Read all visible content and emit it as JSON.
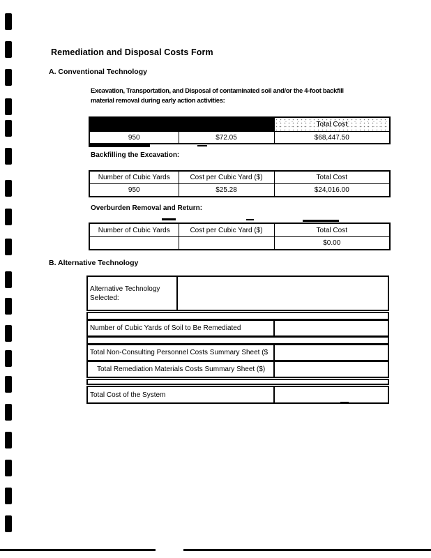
{
  "colors": {
    "ink": "#000000",
    "paper": "#ffffff"
  },
  "title": "Remediation and Disposal Costs Form",
  "section_a": {
    "heading": "A.  Conventional Technology",
    "excavation": {
      "description": "Excavation, Transportation, and Disposal of contaminated soil and/or the 4-foot backfill\nmaterial removal during early action activities:",
      "table": {
        "headers": [
          "",
          "",
          "Total Cost"
        ],
        "header_redacted": true,
        "row": [
          "950",
          "$72.05",
          "$68,447.50"
        ]
      }
    },
    "backfilling": {
      "heading": "Backfilling the Excavation:",
      "table": {
        "headers": [
          "Number of Cubic Yards",
          "Cost per Cubic Yard ($)",
          "Total Cost"
        ],
        "row": [
          "950",
          "$25.28",
          "$24,016.00"
        ]
      }
    },
    "overburden": {
      "heading": "Overburden Removal and Return:",
      "table": {
        "headers": [
          "Number of Cubic Yards",
          "Cost per Cubic Yard ($)",
          "Total Cost"
        ],
        "row": [
          "",
          "",
          "$0.00"
        ]
      }
    }
  },
  "section_b": {
    "heading": "B.  Alternative Technology",
    "rows": [
      {
        "label": "Alternative Technology Selected:",
        "value": ""
      },
      {
        "label": "Number of Cubic Yards of Soil to Be Remediated",
        "value": ""
      },
      {
        "label": "Total Non-Consulting Personnel Costs Summary Sheet ($",
        "value": ""
      },
      {
        "label": "Total Remediation Materials Costs Summary Sheet ($)",
        "value": ""
      },
      {
        "label": "Total Cost of the System",
        "value": ""
      }
    ]
  }
}
